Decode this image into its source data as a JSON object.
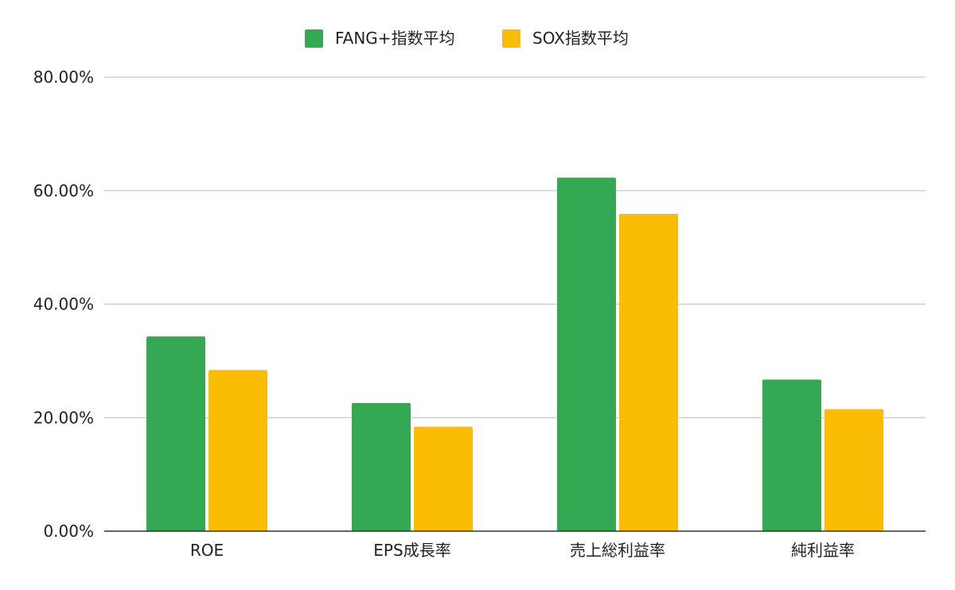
{
  "chart_data": {
    "type": "bar",
    "categories": [
      "ROE",
      "EPS成長率",
      "売上総利益率",
      "純利益率"
    ],
    "series": [
      {
        "name": "FANG+指数平均",
        "color": "#34a853",
        "values": [
          34.3,
          22.6,
          62.3,
          26.7
        ]
      },
      {
        "name": "SOX指数平均",
        "color": "#fbbc04",
        "values": [
          28.4,
          18.4,
          55.9,
          21.5
        ]
      }
    ],
    "ylim": [
      0,
      80
    ],
    "yticks": [
      "0.00%",
      "20.00%",
      "40.00%",
      "60.00%",
      "80.00%"
    ],
    "ytick_values": [
      0,
      20,
      40,
      60,
      80
    ],
    "grid": true,
    "legend_position": "top-center",
    "title": "",
    "xlabel": "",
    "ylabel": ""
  }
}
